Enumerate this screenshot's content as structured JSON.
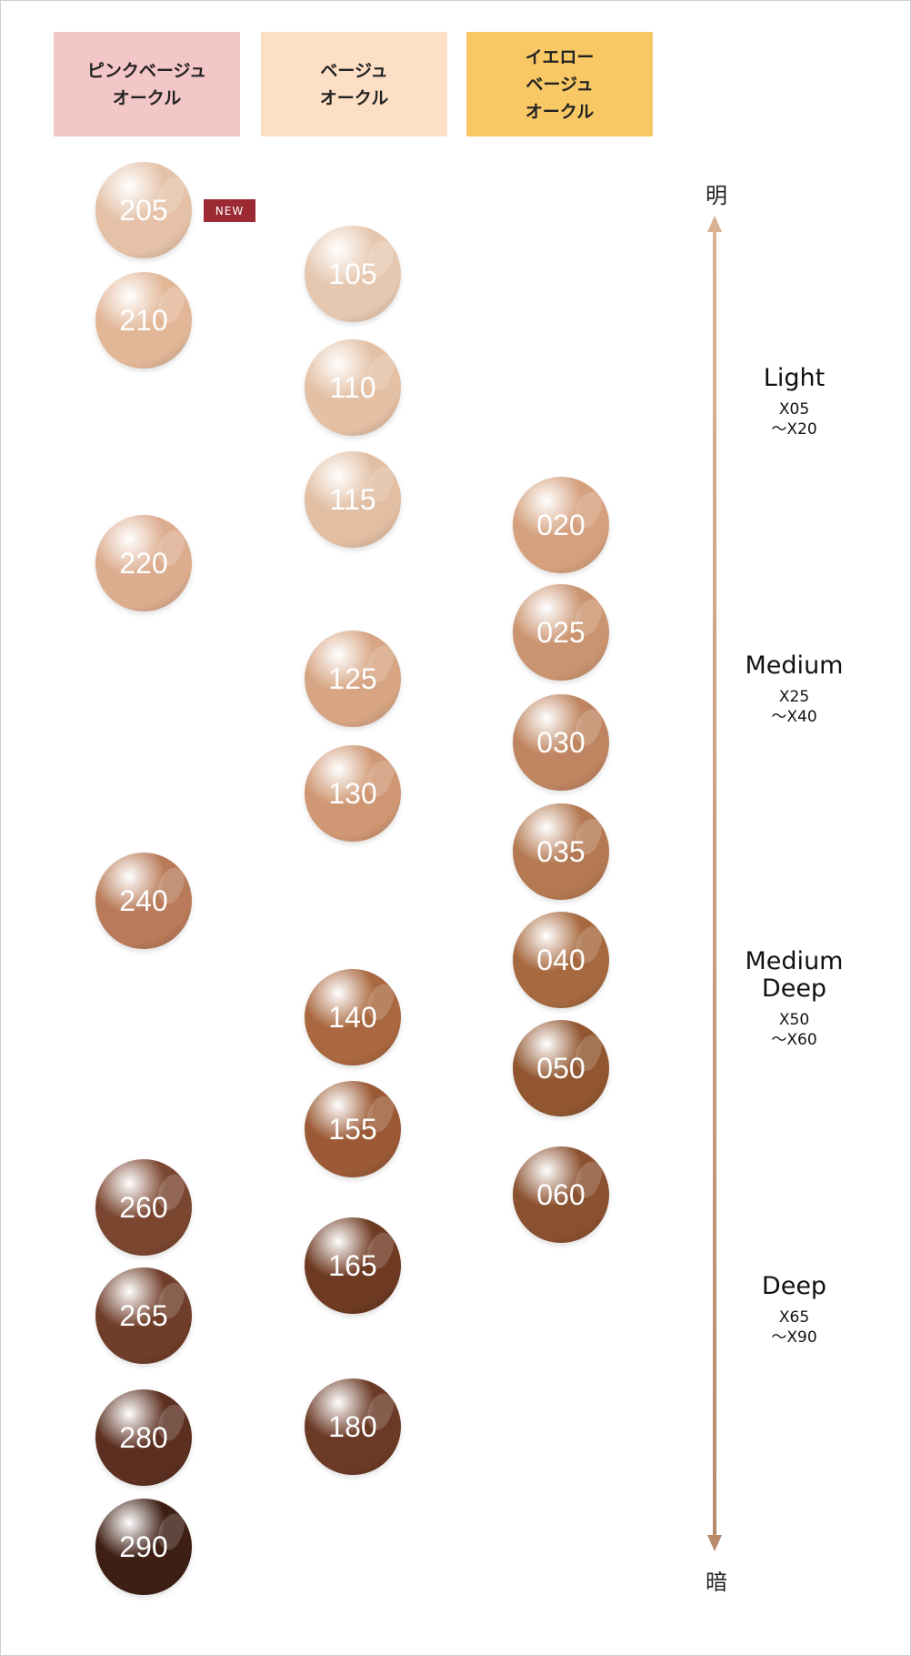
{
  "headers": [
    {
      "lines": [
        "ピンクベージュ",
        "オークル"
      ],
      "color": "#f3c6c8"
    },
    {
      "lines": [
        "ベージュ",
        "オークル"
      ],
      "color": "#fddfc6"
    },
    {
      "lines": [
        "イエロー",
        "ベージュ",
        "オークル"
      ],
      "color": "#f8c865"
    }
  ],
  "new_badge": "NEW",
  "scale": {
    "top": "明",
    "bottom": "暗"
  },
  "levels": [
    {
      "name": "Light",
      "range_from": "X05",
      "range_to": "～X20"
    },
    {
      "name": "Medium",
      "range_from": "X25",
      "range_to": "～X40"
    },
    {
      "name": "Medium Deep",
      "range_from": "X50",
      "range_to": "～X60"
    },
    {
      "name": "Deep",
      "range_from": "X65",
      "range_to": "～X90"
    }
  ],
  "columns": [
    {
      "shades": [
        {
          "code": "205",
          "color": "#e4c1a7",
          "is_new": true
        },
        {
          "code": "210",
          "color": "#e2b798"
        },
        {
          "code": "220",
          "color": "#dcac8e"
        },
        {
          "code": "240",
          "color": "#b87a58"
        },
        {
          "code": "260",
          "color": "#7b4630"
        },
        {
          "code": "265",
          "color": "#6f3d29"
        },
        {
          "code": "280",
          "color": "#5c3021"
        },
        {
          "code": "290",
          "color": "#3e1f14"
        }
      ]
    },
    {
      "shades": [
        {
          "code": "105",
          "color": "#e6c8b0"
        },
        {
          "code": "110",
          "color": "#e4c0a4"
        },
        {
          "code": "115",
          "color": "#e2bea2"
        },
        {
          "code": "125",
          "color": "#d7a583"
        },
        {
          "code": "130",
          "color": "#cf9773"
        },
        {
          "code": "140",
          "color": "#a9683f"
        },
        {
          "code": "155",
          "color": "#9b5a35"
        },
        {
          "code": "165",
          "color": "#6e3a22"
        },
        {
          "code": "180",
          "color": "#6b3a26"
        }
      ]
    },
    {
      "shades": [
        {
          "code": "020",
          "color": "#d5a07d"
        },
        {
          "code": "025",
          "color": "#cb9470"
        },
        {
          "code": "030",
          "color": "#bf8560"
        },
        {
          "code": "035",
          "color": "#b47952"
        },
        {
          "code": "040",
          "color": "#a7693f"
        },
        {
          "code": "050",
          "color": "#915630"
        },
        {
          "code": "060",
          "color": "#8a5130"
        }
      ]
    }
  ]
}
